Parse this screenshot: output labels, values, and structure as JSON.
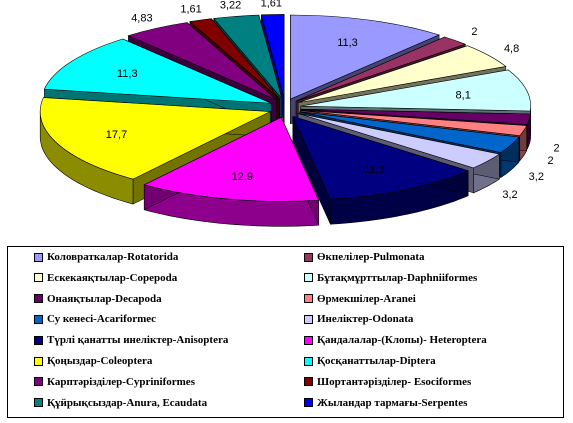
{
  "chart_data": {
    "type": "pie",
    "variant": "3d-exploded",
    "start": "top, clockwise",
    "legend_position": "bottom",
    "series": [
      {
        "name": "Коловраткалар-Rotatorida",
        "value": 11.3,
        "label": "11,3",
        "color": "#9999ff"
      },
      {
        "name": "Өкпелілер-Pulmonata",
        "value": 2,
        "label": "2",
        "color": "#993366"
      },
      {
        "name": "Ескекаяқтылар-Copepoda",
        "value": 4.8,
        "label": "4,8",
        "color": "#ffffcc"
      },
      {
        "name": "Бұтақмұрттылар-Daphniiformes",
        "value": 8.1,
        "label": "8,1",
        "color": "#ccffff"
      },
      {
        "name": "Онаяқтылар-Decapoda",
        "value": 2,
        "label": "2",
        "color": "#660066"
      },
      {
        "name": "Өрмекшілер-Aranei",
        "value": 2,
        "label": "2",
        "color": "#ff8080"
      },
      {
        "name": "Су кенесі-Acariformec",
        "value": 3.2,
        "label": "3,2",
        "color": "#0066cc"
      },
      {
        "name": "Инеліктер-Odonata",
        "value": 3.2,
        "label": "3,2",
        "color": "#ccccff"
      },
      {
        "name": "Түрлі қанатты инеліктер-Anisoptera",
        "value": 11.3,
        "label": "11,3",
        "color": "#000080"
      },
      {
        "name": "Қандалалар-(Клопы)- Heteroptera",
        "value": 12.9,
        "label": "12,9",
        "color": "#ff00ff"
      },
      {
        "name": "Қоңыздар-Coleoptera",
        "value": 17.7,
        "label": "17,7",
        "color": "#ffff00"
      },
      {
        "name": "Қосқанаттылар-Diptera",
        "value": 11.3,
        "label": "11,3",
        "color": "#00ffff"
      },
      {
        "name": "Карптәрізділер-Cypriniformes",
        "value": 4.83,
        "label": "4,83",
        "color": "#800080"
      },
      {
        "name": "Шортантәрізділер- Esociformes",
        "value": 1.61,
        "label": "1,61",
        "color": "#800000"
      },
      {
        "name": "Құйрықсыздар-Anura,  Ecaudata",
        "value": 3.22,
        "label": "3,22",
        "color": "#008080"
      },
      {
        "name": "Жыландар тармағы-Serpentes",
        "value": 1.61,
        "label": "1,61",
        "color": "#0000ff"
      }
    ]
  }
}
